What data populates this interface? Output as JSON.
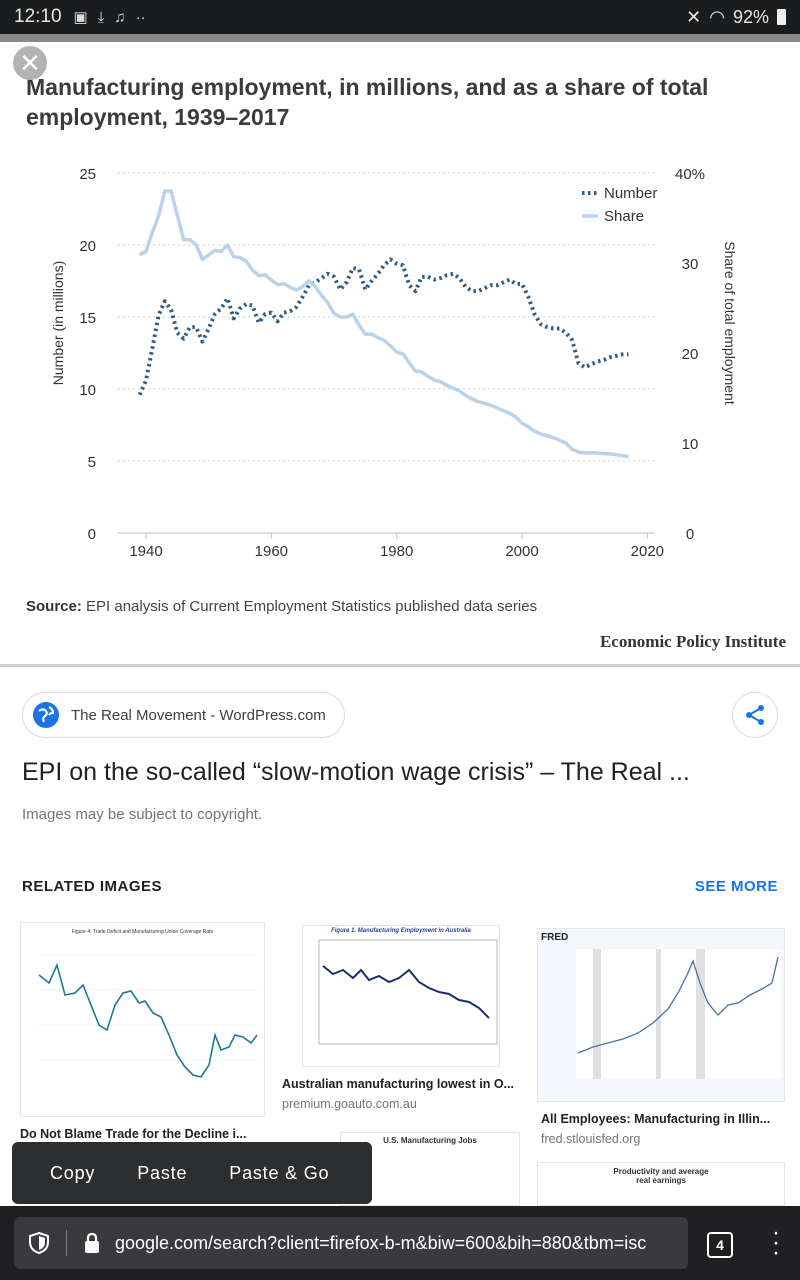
{
  "status_bar": {
    "time": "12:10",
    "battery": "92%"
  },
  "chart_title": "Manufacturing employment, in millions, and as a share of total employment, 1939–2017",
  "chart_data": {
    "type": "line",
    "title": "Manufacturing employment, in millions, and as a share of total employment, 1939–2017",
    "ylabel": "Number (in millions)",
    "y2label": "Share of total employment",
    "ylim": [
      0,
      25
    ],
    "y2lim": [
      0,
      40
    ],
    "xlim": [
      1939,
      2017
    ],
    "x_ticks": [
      "1940",
      "1960",
      "1980",
      "2000",
      "2020"
    ],
    "y_ticks": [
      "0",
      "5",
      "10",
      "15",
      "20",
      "25"
    ],
    "y2_ticks": [
      "0",
      "10",
      "20",
      "30",
      "40%"
    ],
    "legend_position": "top-right",
    "series": [
      {
        "name": "Number",
        "axis": "left",
        "style": "dotted",
        "color": "#2f5f82",
        "x": [
          1939,
          1940,
          1941,
          1942,
          1943,
          1944,
          1945,
          1946,
          1947,
          1948,
          1949,
          1950,
          1951,
          1952,
          1953,
          1954,
          1955,
          1956,
          1957,
          1958,
          1959,
          1960,
          1961,
          1962,
          1963,
          1964,
          1965,
          1966,
          1967,
          1968,
          1969,
          1970,
          1971,
          1972,
          1973,
          1974,
          1975,
          1976,
          1977,
          1978,
          1979,
          1980,
          1981,
          1982,
          1983,
          1984,
          1985,
          1986,
          1987,
          1988,
          1989,
          1990,
          1991,
          1992,
          1993,
          1994,
          1995,
          1996,
          1997,
          1998,
          1999,
          2000,
          2001,
          2002,
          2003,
          2004,
          2005,
          2006,
          2007,
          2008,
          2009,
          2010,
          2011,
          2012,
          2013,
          2014,
          2015,
          2016,
          2017
        ],
        "values": [
          9.6,
          10.6,
          12.8,
          15.1,
          16.1,
          15.5,
          13.9,
          13.5,
          14.3,
          14.3,
          13.3,
          14.2,
          15.2,
          15.6,
          16.3,
          14.9,
          15.6,
          15.9,
          15.8,
          14.6,
          15.2,
          15.3,
          14.7,
          15.3,
          15.4,
          15.7,
          16.4,
          17.2,
          17.4,
          17.7,
          18.0,
          17.8,
          16.9,
          17.4,
          18.4,
          18.3,
          16.9,
          17.5,
          18.0,
          18.6,
          19.0,
          18.7,
          18.6,
          17.2,
          16.8,
          17.8,
          17.8,
          17.6,
          17.7,
          17.9,
          18.0,
          17.7,
          17.1,
          16.8,
          16.8,
          17.0,
          17.2,
          17.2,
          17.4,
          17.6,
          17.3,
          17.3,
          16.4,
          15.2,
          14.5,
          14.3,
          14.2,
          14.2,
          13.9,
          13.4,
          11.8,
          11.5,
          11.7,
          11.9,
          12.0,
          12.2,
          12.3,
          12.4,
          12.4
        ]
      },
      {
        "name": "Share",
        "axis": "right",
        "style": "solid",
        "color": "#b8d3ea",
        "x": [
          1939,
          1940,
          1941,
          1942,
          1943,
          1944,
          1945,
          1946,
          1947,
          1948,
          1949,
          1950,
          1951,
          1952,
          1953,
          1954,
          1955,
          1956,
          1957,
          1958,
          1959,
          1960,
          1961,
          1962,
          1963,
          1964,
          1965,
          1966,
          1967,
          1968,
          1969,
          1970,
          1971,
          1972,
          1973,
          1974,
          1975,
          1976,
          1977,
          1978,
          1979,
          1980,
          1981,
          1982,
          1983,
          1984,
          1985,
          1986,
          1987,
          1988,
          1989,
          1990,
          1991,
          1992,
          1993,
          1994,
          1995,
          1996,
          1997,
          1998,
          1999,
          2000,
          2001,
          2002,
          2003,
          2004,
          2005,
          2006,
          2007,
          2008,
          2009,
          2010,
          2011,
          2012,
          2013,
          2014,
          2015,
          2016,
          2017
        ],
        "values": [
          30.9,
          31.3,
          33.4,
          35.2,
          38.0,
          38.0,
          35.3,
          32.6,
          32.6,
          32.0,
          30.4,
          30.9,
          31.4,
          31.3,
          32.0,
          30.7,
          30.6,
          30.2,
          29.2,
          28.6,
          28.7,
          28.1,
          27.6,
          27.7,
          27.3,
          27.0,
          27.4,
          28.0,
          27.4,
          26.4,
          25.6,
          24.4,
          24.0,
          24.0,
          24.3,
          23.1,
          22.1,
          22.1,
          21.7,
          21.4,
          20.8,
          20.1,
          19.9,
          18.9,
          18.0,
          17.9,
          17.4,
          17.0,
          16.8,
          16.4,
          16.1,
          15.8,
          15.3,
          14.9,
          14.6,
          14.4,
          14.2,
          13.9,
          13.6,
          13.3,
          12.9,
          12.2,
          11.8,
          11.3,
          11.0,
          10.8,
          10.6,
          10.3,
          10.0,
          9.3,
          9.0,
          8.9,
          8.9,
          8.9,
          8.8,
          8.8,
          8.7,
          8.6,
          8.5
        ]
      }
    ]
  },
  "source_label": "Source:",
  "source_text": "EPI analysis of Current Employment Statistics published data series",
  "credit": "Economic Policy Institute",
  "result": {
    "site": "The Real Movement - WordPress.com",
    "title": "EPI on the so-called “slow-motion wage crisis” – The Real ...",
    "copyright": "Images may be subject to copyright."
  },
  "related": {
    "heading": "RELATED IMAGES",
    "see_more": "SEE MORE",
    "items": [
      {
        "caption": "Do Not Blame Trade for the Decline i...",
        "domain": "",
        "thumb_title": "Figure 4: Trade Deficit and Manufacturing Union Coverage Rate"
      },
      {
        "caption": "Australian manufacturing lowest in O...",
        "domain": "premium.goauto.com.au",
        "thumb_title": "Figure 1. Manufacturing Employment in Australia"
      },
      {
        "caption": "All Employees: Manufacturing in Illin...",
        "domain": "fred.stlouisfed.org",
        "thumb_title": "FRED"
      },
      {
        "caption": "",
        "domain": "",
        "thumb_title": "U.S. Manufacturing Jobs"
      },
      {
        "caption": "",
        "domain": "",
        "thumb_title": "Productivity and average real earnings"
      }
    ]
  },
  "context_menu": {
    "copy": "Copy",
    "paste": "Paste",
    "paste_go": "Paste & Go"
  },
  "url_bar": {
    "url": "google.com/search?client=firefox-b-m&biw=600&bih=880&tbm=isc",
    "tabs_count": "4"
  },
  "colors": {
    "accent": "#1a73e8",
    "number_series": "#2f5f82",
    "share_series": "#b8d3ea"
  }
}
